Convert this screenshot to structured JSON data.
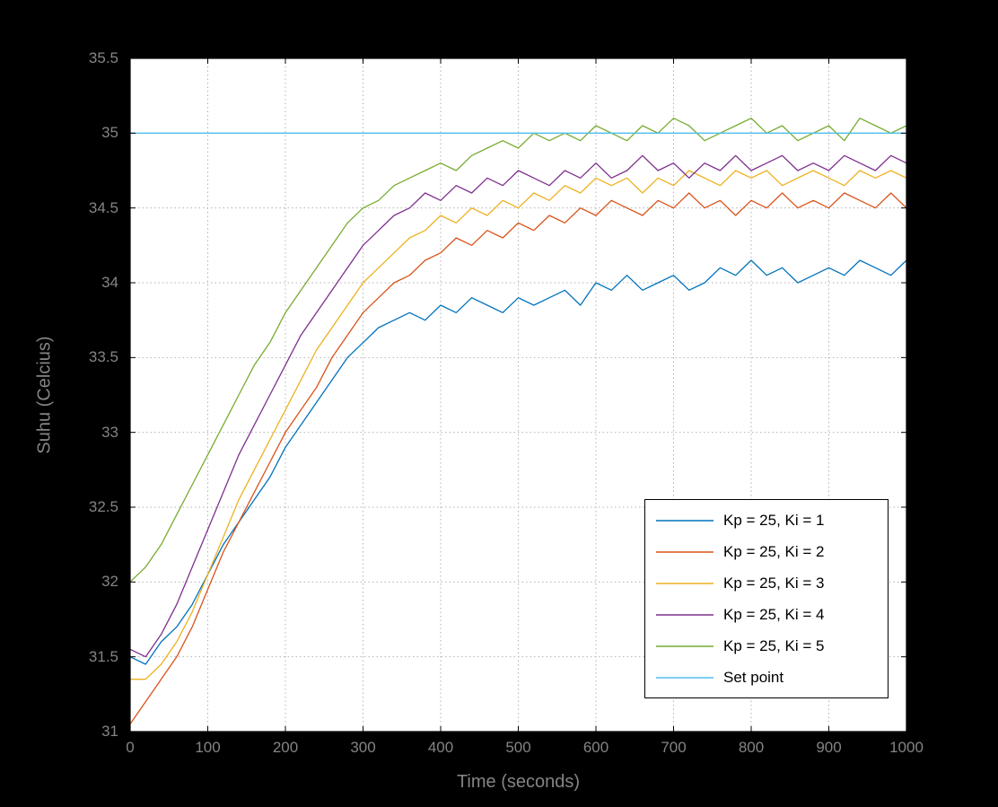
{
  "chart_data": {
    "type": "line",
    "title": "",
    "xlabel": "Time (seconds)",
    "ylabel": "Suhu (Celcius)",
    "xlim": [
      0,
      1000
    ],
    "ylim": [
      31,
      35.5
    ],
    "xticks": [
      0,
      100,
      200,
      300,
      400,
      500,
      600,
      700,
      800,
      900,
      1000
    ],
    "yticks": [
      31,
      31.5,
      32,
      32.5,
      33,
      33.5,
      34,
      34.5,
      35,
      35.5
    ],
    "grid": true,
    "legend": {
      "position": "inside-lower-right"
    },
    "x_start": 0,
    "x_step": 20,
    "series": [
      {
        "name": "Kp = 25, Ki = 1",
        "color": "#0072BD",
        "values": [
          31.5,
          31.45,
          31.6,
          31.7,
          31.85,
          32.05,
          32.25,
          32.4,
          32.55,
          32.7,
          32.9,
          33.05,
          33.2,
          33.35,
          33.5,
          33.6,
          33.7,
          33.75,
          33.8,
          33.75,
          33.85,
          33.8,
          33.9,
          33.85,
          33.8,
          33.9,
          33.85,
          33.9,
          33.95,
          33.85,
          34.0,
          33.95,
          34.05,
          33.95,
          34.0,
          34.05,
          33.95,
          34.0,
          34.1,
          34.05,
          34.15,
          34.05,
          34.1,
          34.0,
          34.05,
          34.1,
          34.05,
          34.15,
          34.1,
          34.05,
          34.15
        ]
      },
      {
        "name": "Kp = 25, Ki = 2",
        "color": "#D95319",
        "values": [
          31.05,
          31.2,
          31.35,
          31.5,
          31.7,
          31.95,
          32.2,
          32.4,
          32.6,
          32.8,
          33.0,
          33.15,
          33.3,
          33.5,
          33.65,
          33.8,
          33.9,
          34.0,
          34.05,
          34.15,
          34.2,
          34.3,
          34.25,
          34.35,
          34.3,
          34.4,
          34.35,
          34.45,
          34.4,
          34.5,
          34.45,
          34.55,
          34.5,
          34.45,
          34.55,
          34.5,
          34.6,
          34.5,
          34.55,
          34.45,
          34.55,
          34.5,
          34.6,
          34.5,
          34.55,
          34.5,
          34.6,
          34.55,
          34.5,
          34.6,
          34.5
        ]
      },
      {
        "name": "Kp = 25, Ki = 3",
        "color": "#EDB120",
        "values": [
          31.35,
          31.35,
          31.45,
          31.6,
          31.8,
          32.05,
          32.3,
          32.55,
          32.75,
          32.95,
          33.15,
          33.35,
          33.55,
          33.7,
          33.85,
          34.0,
          34.1,
          34.2,
          34.3,
          34.35,
          34.45,
          34.4,
          34.5,
          34.45,
          34.55,
          34.5,
          34.6,
          34.55,
          34.65,
          34.6,
          34.7,
          34.65,
          34.7,
          34.6,
          34.7,
          34.65,
          34.75,
          34.7,
          34.65,
          34.75,
          34.7,
          34.75,
          34.65,
          34.7,
          34.75,
          34.7,
          34.65,
          34.75,
          34.7,
          34.75,
          34.7
        ]
      },
      {
        "name": "Kp = 25, Ki = 4",
        "color": "#7E2F8E",
        "values": [
          31.55,
          31.5,
          31.65,
          31.85,
          32.1,
          32.35,
          32.6,
          32.85,
          33.05,
          33.25,
          33.45,
          33.65,
          33.8,
          33.95,
          34.1,
          34.25,
          34.35,
          34.45,
          34.5,
          34.6,
          34.55,
          34.65,
          34.6,
          34.7,
          34.65,
          34.75,
          34.7,
          34.65,
          34.75,
          34.7,
          34.8,
          34.7,
          34.75,
          34.85,
          34.75,
          34.8,
          34.7,
          34.8,
          34.75,
          34.85,
          34.75,
          34.8,
          34.85,
          34.75,
          34.8,
          34.75,
          34.85,
          34.8,
          34.75,
          34.85,
          34.8
        ]
      },
      {
        "name": "Kp = 25, Ki = 5",
        "color": "#77AC30",
        "values": [
          32.0,
          32.1,
          32.25,
          32.45,
          32.65,
          32.85,
          33.05,
          33.25,
          33.45,
          33.6,
          33.8,
          33.95,
          34.1,
          34.25,
          34.4,
          34.5,
          34.55,
          34.65,
          34.7,
          34.75,
          34.8,
          34.75,
          34.85,
          34.9,
          34.95,
          34.9,
          35.0,
          34.95,
          35.0,
          34.95,
          35.05,
          35.0,
          34.95,
          35.05,
          35.0,
          35.1,
          35.05,
          34.95,
          35.0,
          35.05,
          35.1,
          35.0,
          35.05,
          34.95,
          35.0,
          35.05,
          34.95,
          35.1,
          35.05,
          35.0,
          35.05
        ]
      },
      {
        "name": "Set point",
        "color": "#4DBEEE",
        "constant": 35
      }
    ]
  },
  "colors": {
    "figure_background": "#000000",
    "plot_background": "#FFFFFF",
    "axis_box": "#000000",
    "grid": "#B3B3B3",
    "tick_label": "#848484",
    "axis_label": "#848484",
    "legend_background": "#FFFFFF",
    "legend_border": "#000000",
    "legend_text": "#000000"
  }
}
